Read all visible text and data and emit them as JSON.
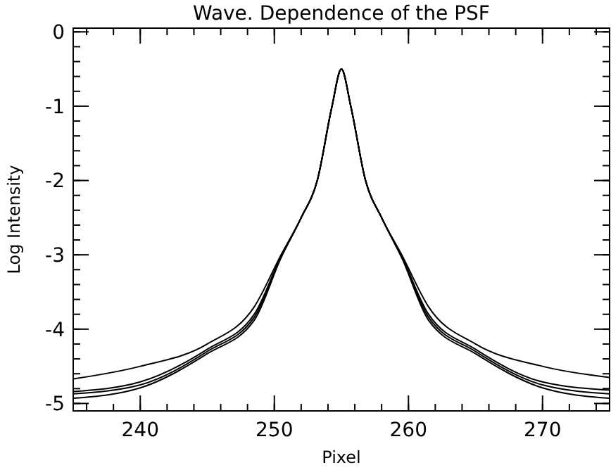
{
  "chart_data": {
    "type": "line",
    "title": "Wave. Dependence of the PSF",
    "xlabel": "Pixel",
    "ylabel": "Log Intensity",
    "x": [
      235,
      240,
      245,
      248.5,
      250.5,
      252,
      253.2,
      254.3,
      255,
      255.7,
      256.8,
      258,
      259.5,
      261.5,
      265,
      270,
      275
    ],
    "series": [
      {
        "color": "#000000",
        "values": [
          -4.67,
          -4.5,
          -4.2,
          -3.7,
          -3.0,
          -2.5,
          -2.0,
          -1.0,
          -0.5,
          -1.0,
          -2.0,
          -2.5,
          -3.0,
          -3.7,
          -4.2,
          -4.5,
          -4.65
        ]
      },
      {
        "color": "#000000",
        "values": [
          -4.84,
          -4.71,
          -4.27,
          -3.8,
          -3.02,
          -2.5,
          -2.0,
          -1.0,
          -0.5,
          -1.0,
          -2.0,
          -2.5,
          -3.02,
          -3.8,
          -4.27,
          -4.71,
          -4.82
        ]
      },
      {
        "color": "#000000",
        "values": [
          -4.87,
          -4.75,
          -4.3,
          -3.84,
          -3.03,
          -2.5,
          -2.0,
          -1.0,
          -0.5,
          -1.0,
          -2.0,
          -2.5,
          -3.03,
          -3.84,
          -4.3,
          -4.75,
          -4.87
        ]
      },
      {
        "color": "#000000",
        "values": [
          -4.93,
          -4.79,
          -4.33,
          -3.88,
          -3.04,
          -2.5,
          -2.0,
          -1.0,
          -0.5,
          -1.0,
          -2.0,
          -2.5,
          -3.04,
          -3.88,
          -4.33,
          -4.79,
          -4.93
        ]
      }
    ],
    "xlim": [
      235,
      275
    ],
    "xticks": [
      240,
      250,
      260,
      270
    ],
    "ylim": [
      -5.1,
      0.05
    ],
    "yticks": [
      -5,
      -4,
      -3,
      -2,
      -1,
      0
    ],
    "grid": false,
    "marker": "none",
    "line_style": "solid"
  }
}
